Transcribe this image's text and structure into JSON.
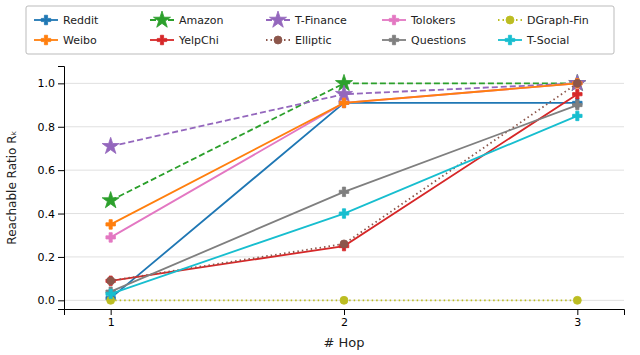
{
  "chart_data": {
    "type": "line",
    "x": [
      1,
      2,
      3
    ],
    "series": [
      {
        "name": "Reddit",
        "values": [
          0.01,
          0.91,
          0.91
        ],
        "color": "#1f77b4",
        "line_style": "solid",
        "marker": "plus"
      },
      {
        "name": "Amazon",
        "values": [
          0.46,
          1.0,
          1.0
        ],
        "color": "#2ca02c",
        "line_style": "dashed",
        "marker": "star"
      },
      {
        "name": "T-Finance",
        "values": [
          0.71,
          0.95,
          1.0
        ],
        "color": "#9467bd",
        "line_style": "dashed",
        "marker": "star"
      },
      {
        "name": "Tolokers",
        "values": [
          0.29,
          0.91,
          1.0
        ],
        "color": "#e377c2",
        "line_style": "solid",
        "marker": "plus"
      },
      {
        "name": "DGraph-Fin",
        "values": [
          0.0,
          0.0,
          0.0
        ],
        "color": "#bcbd22",
        "line_style": "dotted",
        "marker": "circle"
      },
      {
        "name": "Weibo",
        "values": [
          0.35,
          0.91,
          1.0
        ],
        "color": "#ff7f0e",
        "line_style": "solid",
        "marker": "plus"
      },
      {
        "name": "YelpChi",
        "values": [
          0.09,
          0.25,
          0.95
        ],
        "color": "#d62728",
        "line_style": "solid",
        "marker": "plus"
      },
      {
        "name": "Elliptic",
        "values": [
          0.09,
          0.26,
          1.0
        ],
        "color": "#8c564b",
        "line_style": "dotted",
        "marker": "circle"
      },
      {
        "name": "Questions",
        "values": [
          0.04,
          0.5,
          0.9
        ],
        "color": "#7f7f7f",
        "line_style": "solid",
        "marker": "plus"
      },
      {
        "name": "T-Social",
        "values": [
          0.03,
          0.4,
          0.85
        ],
        "color": "#17becf",
        "line_style": "solid",
        "marker": "plus"
      }
    ],
    "x_label": "# Hop",
    "y_label": "Reachable Ratio Rₖ",
    "xlim": [
      0.8,
      3.2
    ],
    "ylim": [
      -0.04,
      1.08
    ],
    "xticks": [
      1,
      2,
      3
    ],
    "yticks": [
      {
        "value": 0.0,
        "label": "0.0"
      },
      0.2,
      0.4,
      0.6,
      0.8,
      {
        "value": 1.0,
        "label": "1.0"
      }
    ],
    "grid": true,
    "legend": "top"
  }
}
